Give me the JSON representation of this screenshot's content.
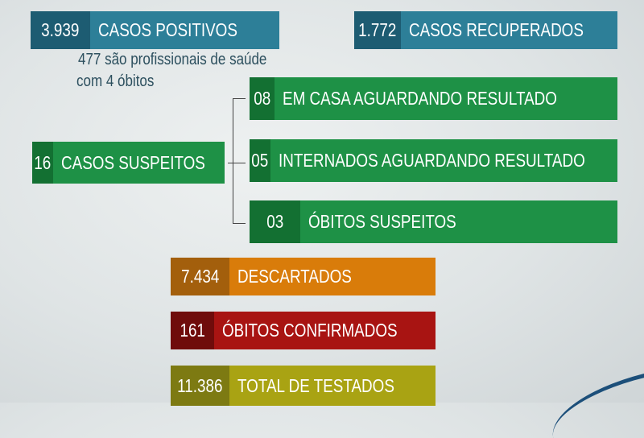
{
  "colors": {
    "blue": "#2d7f98",
    "blue_dark": "#1d5c72",
    "green": "#1e9146",
    "green_dark": "#137032",
    "orange": "#d97c0a",
    "orange_dark": "#a35f0c",
    "red": "#a81412",
    "red_dark": "#6f0c0b",
    "olive": "#a9a313",
    "olive_dark": "#7d7a12"
  },
  "positivos": {
    "value": "3.939",
    "label": "CASOS POSITIVOS",
    "note_line1": "477 são profissionais de saúde",
    "note_line2": "com 4 óbitos"
  },
  "recuperados": {
    "value": "1.772",
    "label": "CASOS RECUPERADOS"
  },
  "suspeitos": {
    "value": "16",
    "label": "CASOS SUSPEITOS",
    "breakdown": [
      {
        "value": "08",
        "label": "EM CASA AGUARDANDO RESULTADO"
      },
      {
        "value": "05",
        "label": "INTERNADOS AGUARDANDO RESULTADO"
      },
      {
        "value": "03",
        "label": "ÓBITOS SUSPEITOS"
      }
    ]
  },
  "descartados": {
    "value": "7.434",
    "label": "DESCARTADOS"
  },
  "obitos": {
    "value": "161",
    "label": "ÓBITOS CONFIRMADOS"
  },
  "testados": {
    "value": "11.386",
    "label": "TOTAL DE TESTADOS"
  }
}
